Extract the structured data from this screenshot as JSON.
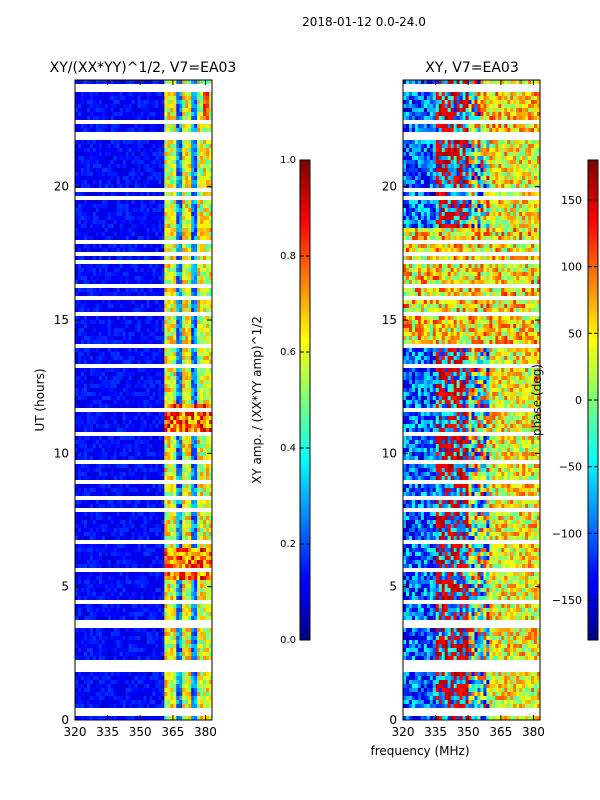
{
  "figure_title": "2018-01-12 0.0-24.0",
  "chart_data": [
    {
      "type": "heatmap",
      "title": "XY/(XX*YY)^1/2, V7=EA03",
      "xlabel": "",
      "ylabel": "UT (hours)",
      "xlim": [
        320,
        383
      ],
      "ylim": [
        0,
        24
      ],
      "xticks": [
        "320",
        "335",
        "350",
        "365",
        "380"
      ],
      "xtick_values": [
        320,
        335,
        350,
        365,
        380
      ],
      "yticks": [
        "0",
        "5",
        "10",
        "15",
        "20"
      ],
      "ytick_values": [
        0,
        5,
        10,
        15,
        20
      ],
      "colormap": "jet",
      "colorbar": {
        "label": "XY amp. / (XX*YY amp)^1/2",
        "range": [
          0.0,
          1.0
        ],
        "ticks": [
          "0.0",
          "0.2",
          "0.4",
          "0.6",
          "0.8",
          "1.0"
        ],
        "tick_values": [
          0.0,
          0.2,
          0.4,
          0.6,
          0.8,
          1.0
        ]
      }
    },
    {
      "type": "heatmap",
      "title": "XY, V7=EA03",
      "xlabel": "frequency (MHz)",
      "ylabel": "",
      "xlim": [
        320,
        383
      ],
      "ylim": [
        0,
        24
      ],
      "xticks": [
        "320",
        "335",
        "350",
        "365",
        "380"
      ],
      "xtick_values": [
        320,
        335,
        350,
        365,
        380
      ],
      "yticks": [
        "0",
        "5",
        "10",
        "15",
        "20"
      ],
      "ytick_values": [
        0,
        5,
        10,
        15,
        20
      ],
      "colormap": "jet",
      "colorbar": {
        "label": "phase (deg)",
        "range": [
          -180,
          180
        ],
        "ticks": [
          "−150",
          "−100",
          "−50",
          "0",
          "50",
          "100",
          "150"
        ],
        "tick_values": [
          -150,
          -100,
          -50,
          0,
          50,
          100,
          150
        ]
      }
    }
  ],
  "flagged_ut_hours": [
    0.2,
    0.35,
    1.9,
    2.05,
    2.15,
    3.5,
    3.6,
    3.7,
    4.4,
    4.8,
    5.6,
    6.0,
    6.7,
    7.5,
    7.9,
    8.3,
    8.9,
    9.7,
    10.5,
    10.7,
    11.6,
    12.9,
    13.3,
    14.0,
    15.2,
    15.8,
    16.3,
    17.2,
    17.5,
    17.9,
    18.9,
    19.2,
    19.6,
    19.9,
    21.6,
    21.8,
    22.0,
    22.4,
    23.6,
    23.8
  ]
}
